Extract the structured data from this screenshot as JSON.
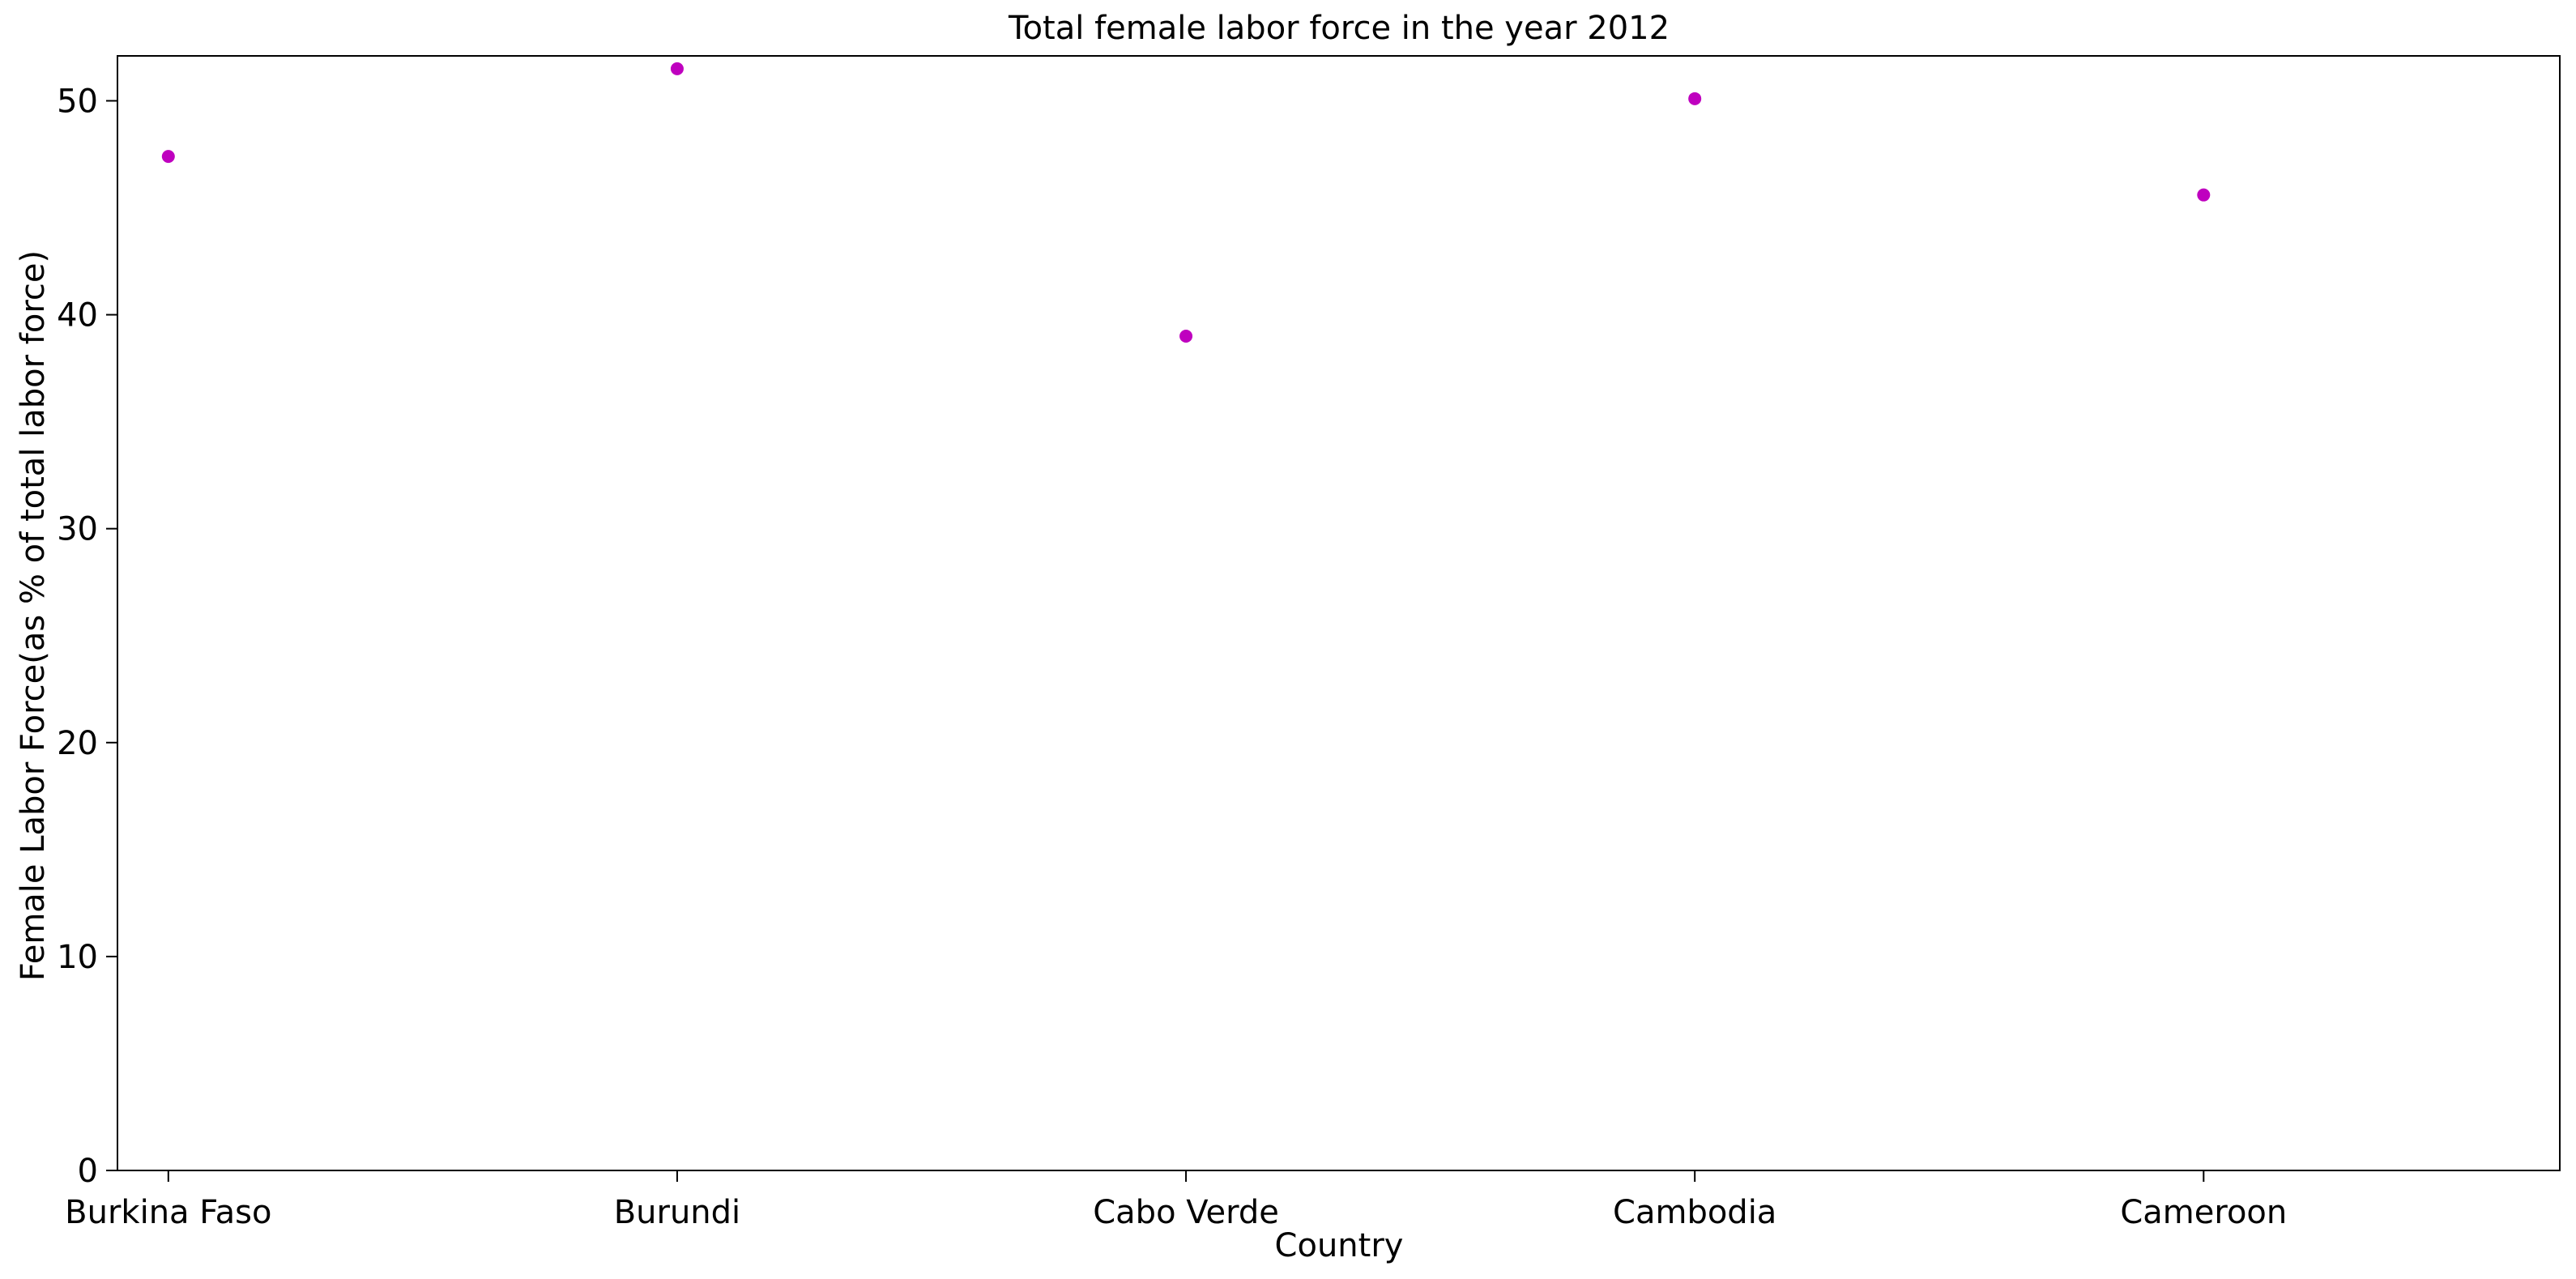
{
  "chart_data": {
    "type": "scatter",
    "title": "Total female labor force in the year 2012",
    "xlabel": "Country",
    "ylabel": "Female Labor Force(as % of total labor force)",
    "categories": [
      "Burkina Faso",
      "Burundi",
      "Cabo Verde",
      "Cambodia",
      "Cameroon"
    ],
    "values": [
      47.4,
      51.5,
      39.0,
      50.1,
      45.6
    ],
    "ylim": [
      0,
      52.1
    ],
    "yticks": [
      0,
      10,
      20,
      30,
      40,
      50
    ],
    "marker_color": "#bf00bf",
    "grid": false,
    "legend": null
  }
}
